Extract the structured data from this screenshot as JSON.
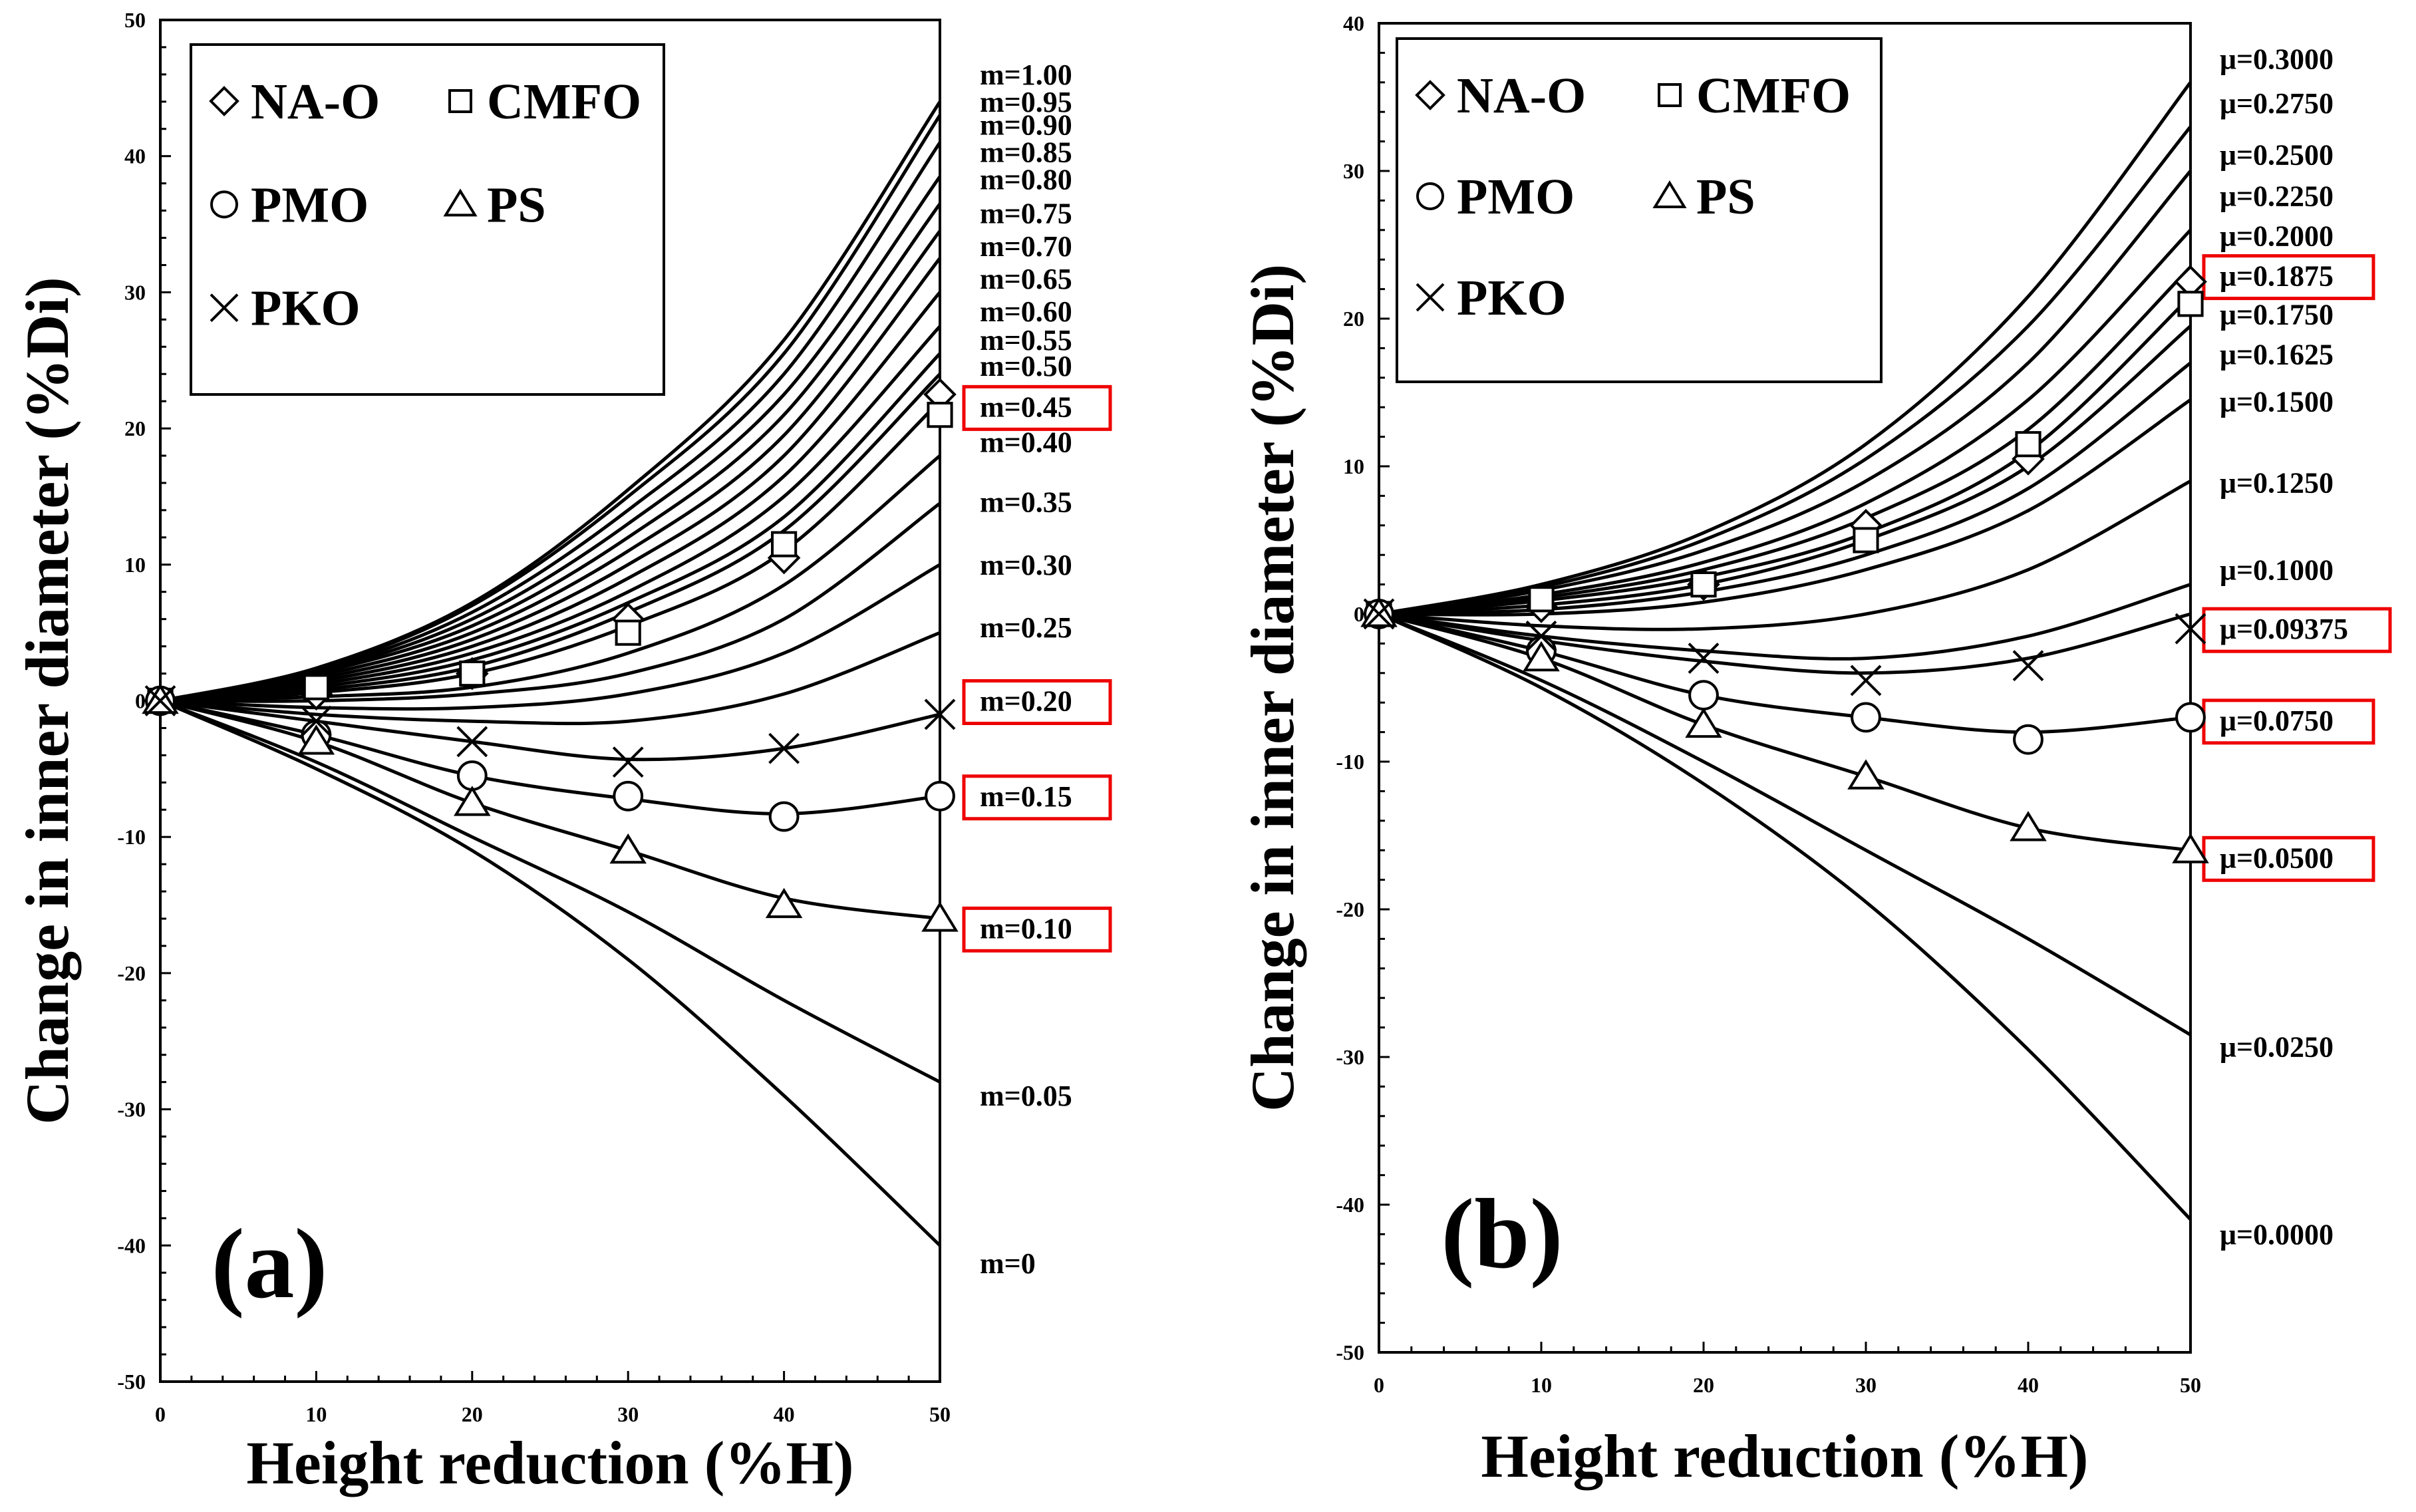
{
  "chart_data": [
    {
      "type": "line",
      "panel_label": "(a)",
      "xlabel": "Height reduction (%H)",
      "ylabel": "Change in inner diameter (%Di)",
      "xlim": [
        0,
        50
      ],
      "ylim": [
        -50,
        50
      ],
      "xticks": [
        0,
        10,
        20,
        30,
        40,
        50
      ],
      "yticks": [
        -50,
        -40,
        -30,
        -20,
        -10,
        0,
        10,
        20,
        30,
        40,
        50
      ],
      "legend": {
        "position": "top-left",
        "entries": [
          {
            "name": "NA-O",
            "marker": "diamond"
          },
          {
            "name": "CMFO",
            "marker": "square"
          },
          {
            "name": "PMO",
            "marker": "circle"
          },
          {
            "name": "PS",
            "marker": "triangle"
          },
          {
            "name": "PKO",
            "marker": "cross"
          }
        ]
      },
      "x": [
        0,
        10,
        20,
        30,
        40,
        50
      ],
      "curves": [
        {
          "name": "m=1.00",
          "highlight": false,
          "values": [
            0,
            2.4,
            7.2,
            15.5,
            26.5,
            44
          ]
        },
        {
          "name": "m=0.95",
          "highlight": false,
          "values": [
            0,
            2.3,
            7,
            15,
            25.5,
            43
          ]
        },
        {
          "name": "m=0.90",
          "highlight": false,
          "values": [
            0,
            2.2,
            6.5,
            14,
            24,
            41
          ]
        },
        {
          "name": "m=0.85",
          "highlight": false,
          "values": [
            0,
            2.1,
            6,
            13,
            22.5,
            38.5
          ]
        },
        {
          "name": "m=0.80",
          "highlight": false,
          "values": [
            0,
            2,
            5.5,
            12,
            21,
            36.5
          ]
        },
        {
          "name": "m=0.75",
          "highlight": false,
          "values": [
            0,
            1.8,
            5,
            11,
            19.5,
            34.5
          ]
        },
        {
          "name": "m=0.70",
          "highlight": false,
          "values": [
            0,
            1.6,
            4.5,
            10,
            18,
            32.5
          ]
        },
        {
          "name": "m=0.65",
          "highlight": false,
          "values": [
            0,
            1.4,
            4,
            9,
            16.5,
            30
          ]
        },
        {
          "name": "m=0.60",
          "highlight": false,
          "values": [
            0,
            1.2,
            3.5,
            8,
            15,
            27.5
          ]
        },
        {
          "name": "m=0.55",
          "highlight": false,
          "values": [
            0,
            1,
            3,
            7.2,
            13.5,
            25.5
          ]
        },
        {
          "name": "m=0.50",
          "highlight": false,
          "values": [
            0,
            0.8,
            2.5,
            6.5,
            12.5,
            24
          ]
        },
        {
          "name": "m=0.45",
          "highlight": true,
          "values": [
            0,
            0.6,
            2,
            5.5,
            11,
            22
          ]
        },
        {
          "name": "m=0.40",
          "highlight": false,
          "values": [
            0,
            0.3,
            1,
            3.5,
            8.5,
            18
          ]
        },
        {
          "name": "m=0.35",
          "highlight": false,
          "values": [
            0,
            0,
            0.5,
            2,
            6,
            14.5
          ]
        },
        {
          "name": "m=0.30",
          "highlight": false,
          "values": [
            0,
            -0.5,
            -0.5,
            0.5,
            3.5,
            10
          ]
        },
        {
          "name": "m=0.25",
          "highlight": false,
          "values": [
            0,
            -1,
            -1.5,
            -1.5,
            0.5,
            5
          ]
        },
        {
          "name": "m=0.20",
          "highlight": true,
          "values": [
            0,
            -1.5,
            -3,
            -4.3,
            -3.5,
            -1
          ]
        },
        {
          "name": "m=0.15",
          "highlight": true,
          "values": [
            0,
            -2.5,
            -5.5,
            -7.2,
            -8.3,
            -7
          ]
        },
        {
          "name": "m=0.10",
          "highlight": true,
          "values": [
            0,
            -3,
            -7.5,
            -11,
            -14.5,
            -16
          ]
        },
        {
          "name": "m=0.05",
          "highlight": false,
          "values": [
            0,
            -4.5,
            -10,
            -15.5,
            -22,
            -28
          ]
        },
        {
          "name": "m=0",
          "highlight": false,
          "values": [
            0,
            -5,
            -11,
            -19,
            -29,
            -40
          ]
        }
      ],
      "markers": [
        {
          "name": "NA-O",
          "marker": "diamond",
          "values": [
            0,
            0.5,
            2,
            6,
            10.5,
            22.5
          ]
        },
        {
          "name": "CMFO",
          "marker": "square",
          "values": [
            0,
            1,
            2,
            5,
            11.5,
            21
          ]
        },
        {
          "name": "PMO",
          "marker": "circle",
          "values": [
            0,
            -2.5,
            -5.5,
            -7,
            -8.5,
            -7
          ]
        },
        {
          "name": "PS",
          "marker": "triangle",
          "values": [
            0,
            -3,
            -7.5,
            -11,
            -15,
            -16
          ]
        },
        {
          "name": "PKO",
          "marker": "cross",
          "values": [
            0,
            -1.5,
            -3,
            -4.5,
            -3.5,
            -1
          ]
        }
      ]
    },
    {
      "type": "line",
      "panel_label": "(b)",
      "xlabel": "Height reduction (%H)",
      "ylabel": "Change in inner diameter (%Di)",
      "xlim": [
        0,
        50
      ],
      "ylim": [
        -50,
        40
      ],
      "xticks": [
        0,
        10,
        20,
        30,
        40,
        50
      ],
      "yticks": [
        -50,
        -40,
        -30,
        -20,
        -10,
        0,
        10,
        20,
        30,
        40
      ],
      "legend": {
        "position": "top-left",
        "entries": [
          {
            "name": "NA-O",
            "marker": "diamond"
          },
          {
            "name": "CMFO",
            "marker": "square"
          },
          {
            "name": "PMO",
            "marker": "circle"
          },
          {
            "name": "PS",
            "marker": "triangle"
          },
          {
            "name": "PKO",
            "marker": "cross"
          }
        ]
      },
      "x": [
        0,
        10,
        20,
        30,
        40,
        50
      ],
      "curves": [
        {
          "name": "μ=0.3000",
          "highlight": false,
          "values": [
            0,
            2,
            5.5,
            11.5,
            21.5,
            36
          ]
        },
        {
          "name": "μ=0.2750",
          "highlight": false,
          "values": [
            0,
            1.8,
            5,
            10.5,
            19.5,
            33
          ]
        },
        {
          "name": "μ=0.2500",
          "highlight": false,
          "values": [
            0,
            1.6,
            4.3,
            9,
            17,
            30
          ]
        },
        {
          "name": "μ=0.2250",
          "highlight": false,
          "values": [
            0,
            1.3,
            3.5,
            7.5,
            14.5,
            26
          ]
        },
        {
          "name": "μ=0.2000",
          "highlight": false,
          "values": [
            0,
            1.1,
            3,
            6.5,
            12.5,
            23.5
          ]
        },
        {
          "name": "μ=0.1875",
          "highlight": true,
          "values": [
            0,
            0.9,
            2.5,
            5.5,
            11,
            21.5
          ]
        },
        {
          "name": "μ=0.1750",
          "highlight": false,
          "values": [
            0,
            0.6,
            2,
            5,
            10,
            19.5
          ]
        },
        {
          "name": "μ=0.1625",
          "highlight": false,
          "values": [
            0,
            0.3,
            1.5,
            4,
            8.5,
            17
          ]
        },
        {
          "name": "μ=0.1500",
          "highlight": false,
          "values": [
            0,
            0,
            0.8,
            3,
            7,
            14.5
          ]
        },
        {
          "name": "μ=0.1250",
          "highlight": false,
          "values": [
            0,
            -0.8,
            -1,
            0,
            3,
            9
          ]
        },
        {
          "name": "μ=0.1000",
          "highlight": false,
          "values": [
            0,
            -1.5,
            -2.5,
            -3,
            -1.5,
            2
          ]
        },
        {
          "name": "μ=0.09375",
          "highlight": true,
          "values": [
            0,
            -1.8,
            -3.2,
            -4,
            -3,
            0
          ]
        },
        {
          "name": "μ=0.0750",
          "highlight": true,
          "values": [
            0,
            -2.5,
            -5.5,
            -7,
            -8,
            -7
          ]
        },
        {
          "name": "μ=0.0500",
          "highlight": true,
          "values": [
            0,
            -3,
            -7.5,
            -11,
            -14.5,
            -16
          ]
        },
        {
          "name": "μ=0.0250",
          "highlight": false,
          "values": [
            0,
            -4.5,
            -10,
            -16,
            -22,
            -28.5
          ]
        },
        {
          "name": "μ=0.0000",
          "highlight": false,
          "values": [
            0,
            -5,
            -11.5,
            -19.5,
            -29.5,
            -41
          ]
        }
      ],
      "markers": [
        {
          "name": "NA-O",
          "marker": "diamond",
          "values": [
            0,
            0.5,
            2,
            6,
            10.5,
            22.5
          ]
        },
        {
          "name": "CMFO",
          "marker": "square",
          "values": [
            0,
            1,
            2,
            5,
            11.5,
            21
          ]
        },
        {
          "name": "PMO",
          "marker": "circle",
          "values": [
            0,
            -2.5,
            -5.5,
            -7,
            -8.5,
            -7
          ]
        },
        {
          "name": "PS",
          "marker": "triangle",
          "values": [
            0,
            -3,
            -7.5,
            -11,
            -14.5,
            -16
          ]
        },
        {
          "name": "PKO",
          "marker": "cross",
          "values": [
            0,
            -1.5,
            -3,
            -4.5,
            -3.5,
            -1
          ]
        }
      ]
    }
  ]
}
